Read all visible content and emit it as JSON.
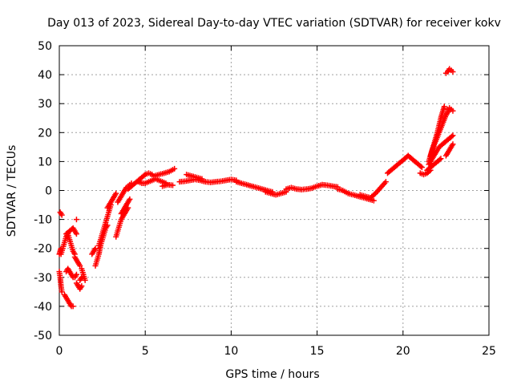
{
  "chart_data": {
    "type": "scatter",
    "title": "Day 013 of 2023, Sidereal Day-to-day VTEC variation (SDTVAR) for receiver kokv",
    "xlabel": "GPS time / hours",
    "ylabel": "SDTVAR / TECUs",
    "xlim": [
      0,
      25
    ],
    "ylim": [
      -50,
      50
    ],
    "xticks": [
      "0",
      "5",
      "10",
      "15",
      "20",
      "25"
    ],
    "yticks": [
      "-50",
      "-40",
      "-30",
      "-20",
      "-10",
      "0",
      "10",
      "20",
      "30",
      "40",
      "50"
    ],
    "grid": true,
    "marker": "plus",
    "color": "#ff0000",
    "series": [
      {
        "name": "SDTVAR",
        "segments": [
          {
            "x": [
              0.0,
              0.05,
              0.1,
              0.15
            ],
            "y": [
              -28,
              -30,
              -33,
              -35
            ]
          },
          {
            "x": [
              0.0,
              0.05,
              0.1
            ],
            "y": [
              -22,
              -21,
              -20
            ]
          },
          {
            "x": [
              0.05,
              0.1,
              0.15
            ],
            "y": [
              -7.5,
              -8,
              -8.5
            ]
          },
          {
            "x": [
              0.1,
              0.2,
              0.3,
              0.4,
              0.5,
              0.6,
              0.7,
              0.8,
              0.9
            ],
            "y": [
              -22,
              -20,
              -18,
              -16,
              -15,
              -17,
              -19,
              -21,
              -22
            ]
          },
          {
            "x": [
              0.3,
              0.4,
              0.5,
              0.6,
              0.7,
              0.8
            ],
            "y": [
              -36,
              -37,
              -38,
              -39,
              -40,
              -40
            ]
          },
          {
            "x": [
              0.4,
              0.5,
              0.6,
              0.7,
              0.8,
              0.9,
              1.0
            ],
            "y": [
              -28,
              -27,
              -28,
              -29,
              -30,
              -30,
              -29
            ]
          },
          {
            "x": [
              0.4,
              0.6,
              0.8,
              1.0
            ],
            "y": [
              -15,
              -14,
              -13,
              -15
            ]
          },
          {
            "x": [
              1.0
            ],
            "y": [
              -10
            ]
          },
          {
            "x": [
              0.9,
              1.0,
              1.1,
              1.2
            ],
            "y": [
              -23,
              -24,
              -25,
              -26
            ]
          },
          {
            "x": [
              1.2,
              1.3
            ],
            "y": [
              -31,
              -30
            ]
          },
          {
            "x": [
              1.0,
              1.1,
              1.2,
              1.3
            ],
            "y": [
              -32,
              -33,
              -34,
              -33
            ]
          },
          {
            "x": [
              1.3,
              1.4,
              1.5
            ],
            "y": [
              -27,
              -29,
              -31
            ]
          },
          {
            "x": [
              1.9,
              2.0,
              2.1
            ],
            "y": [
              -22,
              -21,
              -20
            ]
          },
          {
            "x": [
              2.1,
              2.2,
              2.3,
              2.4,
              2.5,
              2.6,
              2.7,
              2.8
            ],
            "y": [
              -26,
              -24,
              -22,
              -19,
              -17,
              -15,
              -13,
              -12
            ]
          },
          {
            "x": [
              2.3,
              2.4,
              2.5,
              2.6,
              2.7,
              2.8,
              2.9,
              3.0
            ],
            "y": [
              -19,
              -17,
              -15,
              -13,
              -11,
              -9,
              -7,
              -5
            ]
          },
          {
            "x": [
              2.8,
              2.9,
              3.0,
              3.1,
              3.2,
              3.3
            ],
            "y": [
              -6,
              -5,
              -4,
              -3,
              -2,
              -1
            ]
          },
          {
            "x": [
              3.3,
              3.4,
              3.5,
              3.6,
              3.7,
              3.8,
              3.9,
              4.0
            ],
            "y": [
              -16,
              -14,
              -12,
              -10,
              -9,
              -8,
              -7,
              -6
            ]
          },
          {
            "x": [
              3.4,
              3.5,
              3.6,
              3.7,
              3.8,
              3.9,
              4.0,
              4.1,
              4.2
            ],
            "y": [
              -4,
              -3,
              -2,
              -1,
              0,
              1,
              1.5,
              2,
              2.5
            ]
          },
          {
            "x": [
              3.6,
              3.7,
              3.8,
              3.9,
              4.0,
              4.1
            ],
            "y": [
              -8,
              -7,
              -6,
              -5,
              -4,
              -3
            ]
          },
          {
            "x": [
              4.0,
              4.2,
              4.4,
              4.6,
              4.8,
              5.0,
              5.2,
              5.4
            ],
            "y": [
              0.5,
              1.5,
              2.5,
              3.5,
              4.5,
              5.5,
              6,
              5.5
            ]
          },
          {
            "x": [
              4.6,
              4.8,
              5.0,
              5.2,
              5.4,
              5.6,
              5.8,
              6.0,
              6.2
            ],
            "y": [
              3,
              2.5,
              2.5,
              3,
              3.5,
              4,
              3.5,
              3,
              2.5
            ]
          },
          {
            "x": [
              5.5,
              5.8,
              6.1,
              6.4,
              6.7
            ],
            "y": [
              5,
              5.5,
              6,
              6.5,
              7.5
            ]
          },
          {
            "x": [
              6.0,
              6.3,
              6.6
            ],
            "y": [
              1.5,
              2,
              1.8
            ]
          },
          {
            "x": [
              7.0,
              7.3,
              7.6,
              7.9,
              8.2,
              8.5,
              8.8,
              9.1,
              9.4,
              9.7,
              10.0,
              10.3
            ],
            "y": [
              3,
              3.2,
              3.5,
              3.8,
              3.5,
              3,
              2.8,
              3,
              3.2,
              3.5,
              3.8,
              3.5
            ]
          },
          {
            "x": [
              7.4,
              7.7,
              8.0,
              8.3
            ],
            "y": [
              5.5,
              5,
              4.5,
              4
            ]
          },
          {
            "x": [
              10.3,
              10.6,
              10.9,
              11.2,
              11.5,
              11.8,
              12.1,
              12.4
            ],
            "y": [
              3,
              2.5,
              2,
              1.5,
              1,
              0.5,
              0,
              -0.5
            ]
          },
          {
            "x": [
              12.0,
              12.3,
              12.6,
              12.9,
              13.2
            ],
            "y": [
              -0.5,
              -1,
              -1.5,
              -1,
              -0.5
            ]
          },
          {
            "x": [
              13.2,
              13.5,
              13.8,
              14.1,
              14.4,
              14.7,
              15.0,
              15.3,
              15.6,
              15.9,
              16.2
            ],
            "y": [
              0.5,
              1,
              0.5,
              0.3,
              0.5,
              0.8,
              1.5,
              2,
              1.8,
              1.5,
              1.2
            ]
          },
          {
            "x": [
              16.2,
              16.5,
              16.8,
              17.1,
              17.4,
              17.7,
              18.0,
              18.3
            ],
            "y": [
              0.5,
              0,
              -1,
              -1.5,
              -2,
              -2.5,
              -3,
              -3.5
            ]
          },
          {
            "x": [
              17.5,
              17.8,
              18.1,
              18.4,
              18.7,
              19.0
            ],
            "y": [
              -1.5,
              -2,
              -2.5,
              -1,
              1,
              3
            ]
          },
          {
            "x": [
              19.1,
              19.3,
              19.5,
              19.7,
              19.9,
              20.1,
              20.3
            ],
            "y": [
              6,
              7,
              8,
              9,
              10,
              11,
              12
            ]
          },
          {
            "x": [
              20.3,
              20.5,
              20.7,
              20.9,
              21.1
            ],
            "y": [
              12,
              11,
              10,
              9,
              8
            ]
          },
          {
            "x": [
              21.0,
              21.2,
              21.4,
              21.6
            ],
            "y": [
              6,
              5.5,
              6,
              7
            ]
          },
          {
            "x": [
              21.4,
              21.6,
              21.8,
              22.0,
              22.2
            ],
            "y": [
              7,
              8,
              9,
              10,
              11
            ]
          },
          {
            "x": [
              21.5,
              21.7,
              21.9,
              22.1,
              22.3,
              22.5,
              22.7,
              22.9
            ],
            "y": [
              9,
              11,
              13,
              15,
              16,
              17,
              18,
              19
            ]
          },
          {
            "x": [
              21.5,
              21.7,
              21.9,
              22.1,
              22.3,
              22.5,
              22.7
            ],
            "y": [
              10,
              14,
              17,
              20,
              23,
              26,
              28
            ]
          },
          {
            "x": [
              21.6,
              21.8,
              22.0,
              22.2,
              22.4
            ],
            "y": [
              12,
              16,
              20,
              25,
              29
            ]
          },
          {
            "x": [
              22.5,
              22.6,
              22.7,
              22.8,
              22.9
            ],
            "y": [
              40.5,
              41,
              42,
              41.5,
              41
            ]
          },
          {
            "x": [
              22.6,
              22.7,
              22.8,
              22.9
            ],
            "y": [
              28,
              28.5,
              28,
              27.5
            ]
          },
          {
            "x": [
              22.5,
              22.6,
              22.7,
              22.8,
              22.9
            ],
            "y": [
              12,
              13,
              14,
              15,
              16
            ]
          }
        ]
      }
    ]
  }
}
